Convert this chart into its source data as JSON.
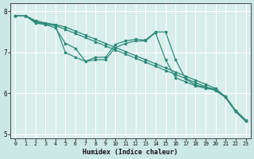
{
  "xlabel": "Humidex (Indice chaleur)",
  "x_values": [
    0,
    1,
    2,
    3,
    4,
    5,
    6,
    7,
    8,
    9,
    10,
    11,
    12,
    13,
    14,
    15,
    16,
    17,
    18,
    19,
    20,
    21,
    22,
    23
  ],
  "line1": [
    7.9,
    7.9,
    7.75,
    7.7,
    7.65,
    7.0,
    6.88,
    6.78,
    6.88,
    6.88,
    7.2,
    7.28,
    7.32,
    7.3,
    7.5,
    7.5,
    6.82,
    6.35,
    6.2,
    6.15,
    6.1,
    5.92,
    5.58,
    5.35
  ],
  "line2": [
    7.9,
    7.9,
    7.72,
    7.68,
    7.6,
    7.22,
    7.1,
    6.78,
    6.82,
    6.82,
    7.12,
    7.22,
    7.28,
    7.28,
    7.48,
    6.82,
    6.38,
    6.28,
    6.18,
    6.12,
    6.08,
    5.9,
    5.55,
    5.32
  ],
  "line3": [
    7.9,
    7.9,
    7.78,
    7.72,
    7.68,
    7.62,
    7.52,
    7.42,
    7.32,
    7.22,
    7.12,
    7.02,
    6.92,
    6.82,
    6.72,
    6.62,
    6.52,
    6.42,
    6.32,
    6.22,
    6.12,
    5.9,
    5.55,
    5.32
  ],
  "line4": [
    7.9,
    7.9,
    7.74,
    7.7,
    7.66,
    7.56,
    7.46,
    7.36,
    7.26,
    7.16,
    7.06,
    6.96,
    6.86,
    6.76,
    6.66,
    6.56,
    6.46,
    6.36,
    6.26,
    6.16,
    6.06,
    5.9,
    5.55,
    5.32
  ],
  "line_color": "#2e8b7a",
  "bg_color": "#cce8e4",
  "plot_bg": "#d8eeea",
  "grid_color": "#ffffff",
  "ylim": [
    4.9,
    8.2
  ],
  "xlim": [
    -0.5,
    23.5
  ],
  "yticks": [
    5,
    6,
    7,
    8
  ],
  "xticks": [
    0,
    1,
    2,
    3,
    4,
    5,
    6,
    7,
    8,
    9,
    10,
    11,
    12,
    13,
    14,
    15,
    16,
    17,
    18,
    19,
    20,
    21,
    22,
    23
  ]
}
